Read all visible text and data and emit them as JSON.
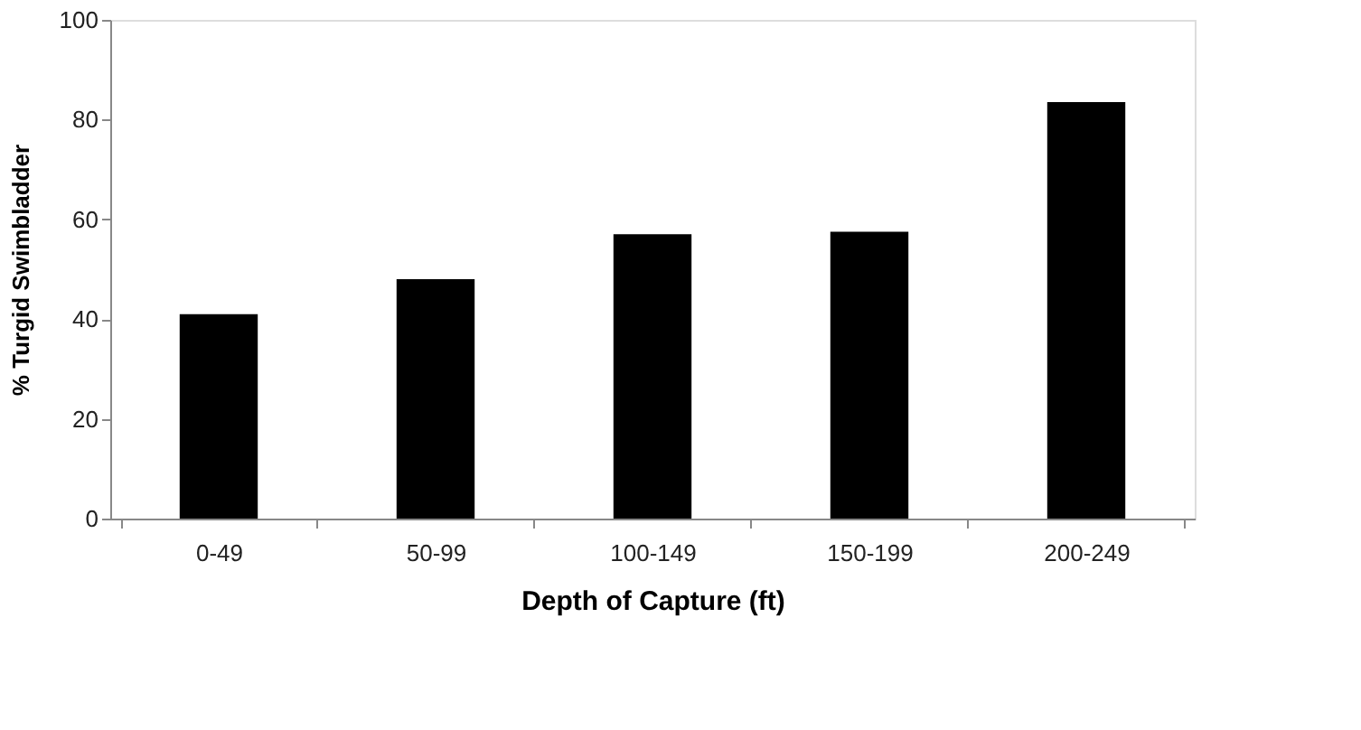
{
  "chart_data": {
    "type": "bar",
    "xlabel": "Depth of Capture (ft)",
    "ylabel": "% Turgid Swimbladder",
    "categories": [
      "0-49",
      "50-99",
      "100-149",
      "150-199",
      "200-249"
    ],
    "values": [
      41,
      48,
      57,
      57.5,
      83.5
    ],
    "color": "#000000",
    "ylim": [
      0,
      100
    ],
    "yticks": [
      0,
      20,
      40,
      60,
      80,
      100
    ],
    "grid": false
  }
}
